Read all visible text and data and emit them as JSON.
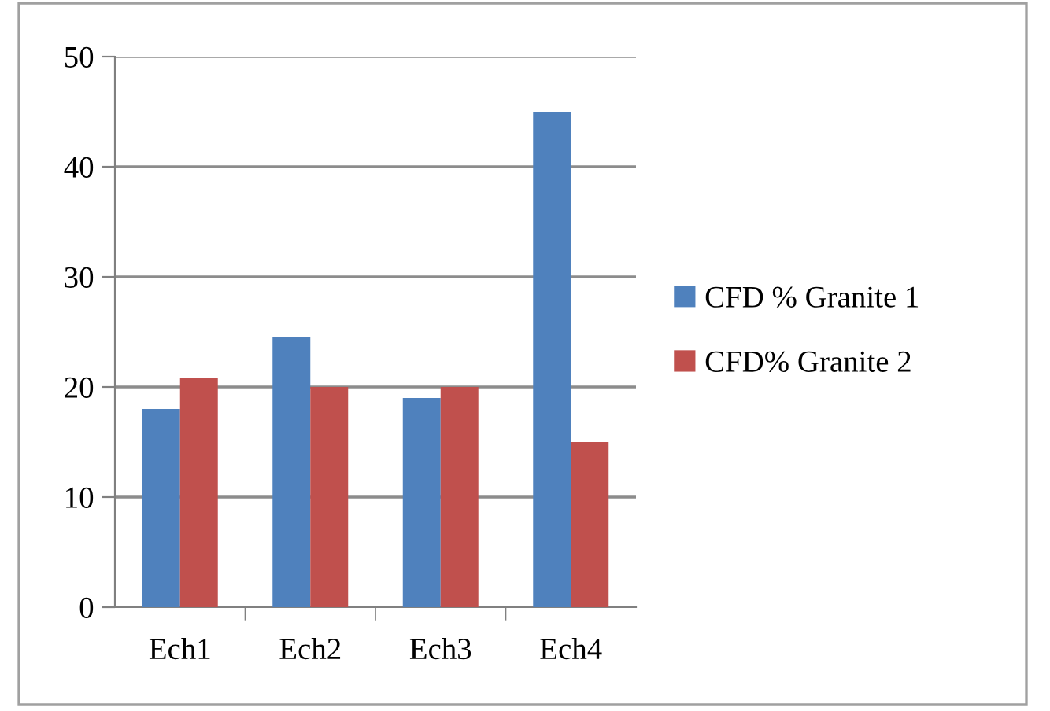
{
  "chart_data": {
    "type": "bar",
    "categories": [
      "Ech1",
      "Ech2",
      "Ech3",
      "Ech4"
    ],
    "series": [
      {
        "name": "CFD % Granite 1",
        "color": "#4f81bd",
        "values": [
          18,
          24.5,
          19,
          45
        ]
      },
      {
        "name": "CFD% Granite 2",
        "color": "#c0504d",
        "values": [
          20.8,
          20,
          20,
          15
        ]
      }
    ],
    "ylim": [
      0,
      50
    ],
    "yticks": [
      0,
      10,
      20,
      30,
      40,
      50
    ],
    "grid": "y",
    "legend": "right"
  }
}
